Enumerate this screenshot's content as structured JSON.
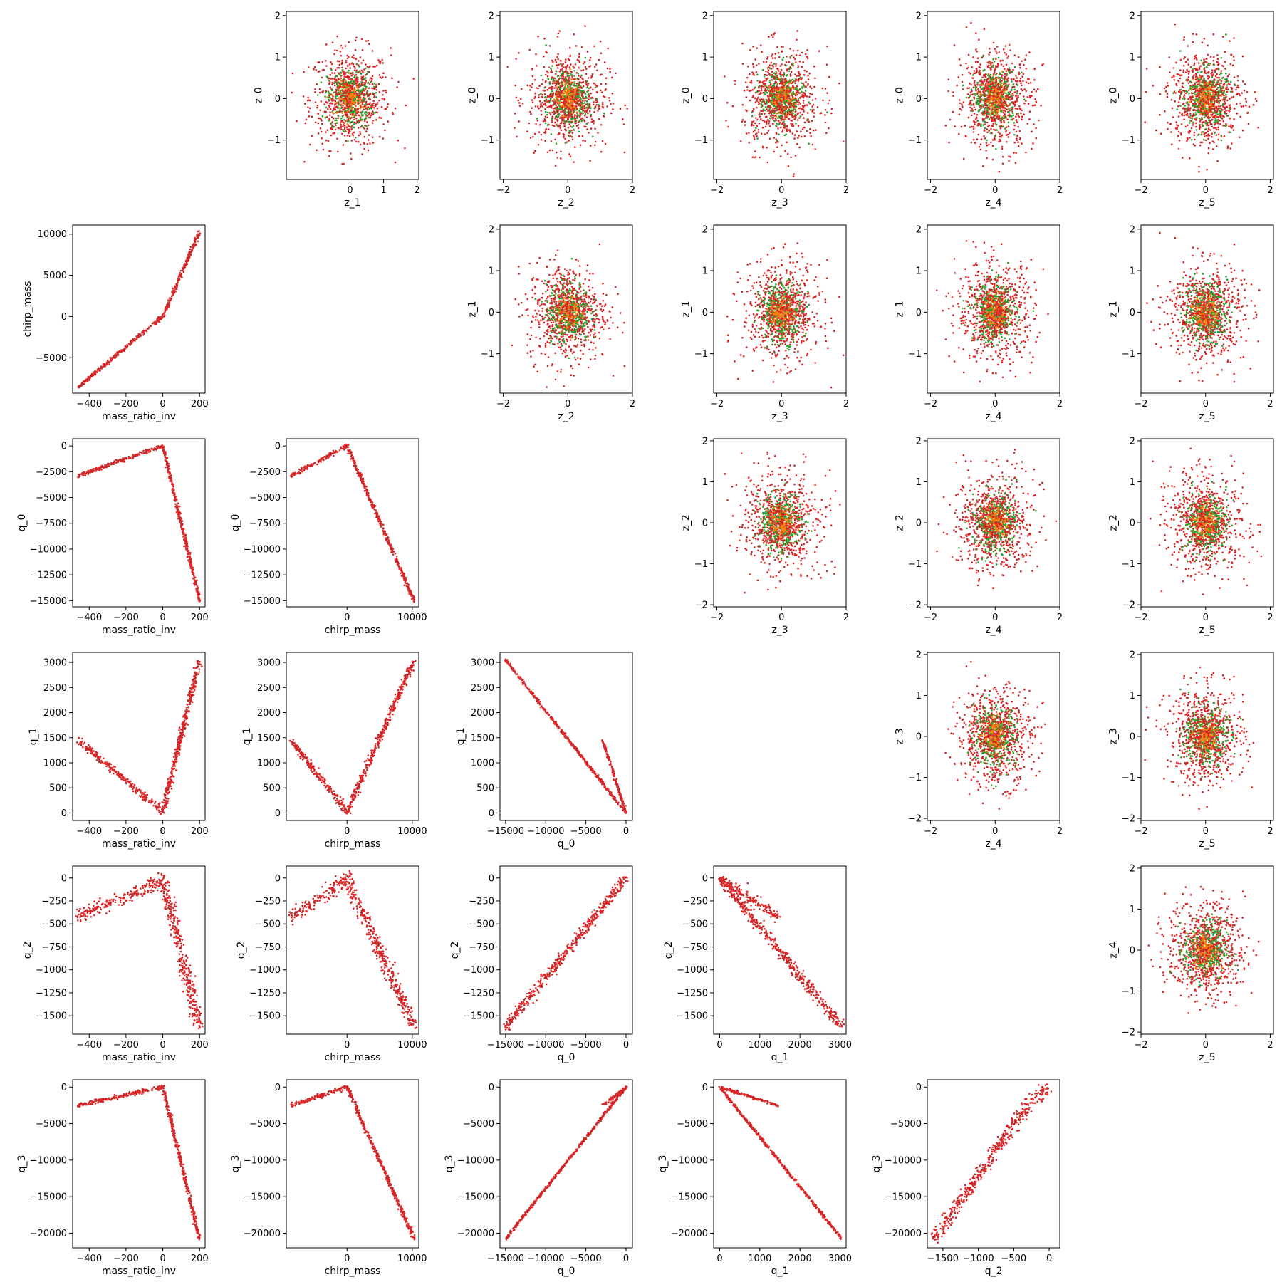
{
  "colors": {
    "red": "#d62728",
    "green": "#2ca02c",
    "orange": "#ff7f0e"
  },
  "chart_data": [
    {
      "type": "scatter",
      "row": 0,
      "col": 1,
      "xlabel": "z_1",
      "ylabel": "z_0",
      "xlim": [
        -1.9,
        2.05
      ],
      "ylim": [
        -1.95,
        2.1
      ],
      "xticks": [
        0,
        1,
        2
      ],
      "yticks": [
        -1,
        0,
        1,
        2
      ],
      "pattern": "cloud",
      "sx": 0.6,
      "sy": 0.6
    },
    {
      "type": "scatter",
      "row": 0,
      "col": 2,
      "xlabel": "z_2",
      "ylabel": "z_0",
      "xlim": [
        -2.1,
        2.0
      ],
      "ylim": [
        -1.95,
        2.1
      ],
      "xticks": [
        -2,
        0,
        2
      ],
      "yticks": [
        -1,
        0,
        1,
        2
      ],
      "pattern": "cloud",
      "sx": 0.62,
      "sy": 0.6
    },
    {
      "type": "scatter",
      "row": 0,
      "col": 3,
      "xlabel": "z_3",
      "ylabel": "z_0",
      "xlim": [
        -2.1,
        2.0
      ],
      "ylim": [
        -1.95,
        2.1
      ],
      "xticks": [
        -2,
        0,
        2
      ],
      "yticks": [
        -1,
        0,
        1,
        2
      ],
      "pattern": "cloud",
      "sx": 0.6,
      "sy": 0.6
    },
    {
      "type": "scatter",
      "row": 0,
      "col": 4,
      "xlabel": "z_4",
      "ylabel": "z_0",
      "xlim": [
        -2.1,
        2.0
      ],
      "ylim": [
        -1.95,
        2.1
      ],
      "xticks": [
        -2,
        0,
        2
      ],
      "yticks": [
        -1,
        0,
        1,
        2
      ],
      "pattern": "cloud",
      "sx": 0.6,
      "sy": 0.6
    },
    {
      "type": "scatter",
      "row": 0,
      "col": 5,
      "xlabel": "z_5",
      "ylabel": "z_0",
      "xlim": [
        -2.0,
        2.1
      ],
      "ylim": [
        -1.95,
        2.1
      ],
      "xticks": [
        -2,
        0,
        2
      ],
      "yticks": [
        -1,
        0,
        1,
        2
      ],
      "pattern": "cloud",
      "sx": 0.6,
      "sy": 0.6
    },
    {
      "type": "scatter",
      "row": 1,
      "col": 0,
      "xlabel": "mass_ratio_inv",
      "ylabel": "chirp_mass",
      "xlim": [
        -490,
        230
      ],
      "ylim": [
        -9300,
        11100
      ],
      "xticks": [
        -400,
        -200,
        0,
        200
      ],
      "yticks": [
        -5000,
        0,
        5000,
        10000
      ],
      "pattern": "polyline",
      "segments": [
        [
          [
            -460,
            -8600
          ],
          [
            -20,
            -300
          ],
          [
            0,
            0
          ]
        ],
        [
          [
            0,
            0
          ],
          [
            200,
            10300
          ]
        ]
      ],
      "spread": 0.006
    },
    {
      "type": "scatter",
      "row": 1,
      "col": 2,
      "xlabel": "z_2",
      "ylabel": "z_1",
      "xlim": [
        -2.1,
        2.0
      ],
      "ylim": [
        -1.95,
        2.1
      ],
      "xticks": [
        -2,
        0,
        2
      ],
      "yticks": [
        -1,
        0,
        1,
        2
      ],
      "pattern": "cloud",
      "sx": 0.62,
      "sy": 0.6
    },
    {
      "type": "scatter",
      "row": 1,
      "col": 3,
      "xlabel": "z_3",
      "ylabel": "z_1",
      "xlim": [
        -2.1,
        2.0
      ],
      "ylim": [
        -1.95,
        2.1
      ],
      "xticks": [
        -2,
        0,
        2
      ],
      "yticks": [
        -1,
        0,
        1,
        2
      ],
      "pattern": "cloud",
      "sx": 0.6,
      "sy": 0.6
    },
    {
      "type": "scatter",
      "row": 1,
      "col": 4,
      "xlabel": "z_4",
      "ylabel": "z_1",
      "xlim": [
        -2.1,
        2.0
      ],
      "ylim": [
        -1.95,
        2.1
      ],
      "xticks": [
        -2,
        0,
        2
      ],
      "yticks": [
        -1,
        0,
        1,
        2
      ],
      "pattern": "cloud",
      "sx": 0.6,
      "sy": 0.6
    },
    {
      "type": "scatter",
      "row": 1,
      "col": 5,
      "xlabel": "z_5",
      "ylabel": "z_1",
      "xlim": [
        -2.0,
        2.1
      ],
      "ylim": [
        -1.95,
        2.1
      ],
      "xticks": [
        -2,
        0,
        2
      ],
      "yticks": [
        -1,
        0,
        1,
        2
      ],
      "pattern": "cloud",
      "sx": 0.6,
      "sy": 0.6
    },
    {
      "type": "scatter",
      "row": 2,
      "col": 0,
      "xlabel": "mass_ratio_inv",
      "ylabel": "q_0",
      "xlim": [
        -490,
        230
      ],
      "ylim": [
        -15600,
        700
      ],
      "xticks": [
        -400,
        -200,
        0,
        200
      ],
      "yticks": [
        -15000,
        -12500,
        -10000,
        -7500,
        -5000,
        -2500,
        0
      ],
      "pattern": "polyline",
      "segments": [
        [
          [
            -460,
            -2900
          ],
          [
            0,
            0
          ]
        ],
        [
          [
            0,
            0
          ],
          [
            200,
            -15000
          ]
        ]
      ],
      "spread": 0.006
    },
    {
      "type": "scatter",
      "row": 2,
      "col": 1,
      "xlabel": "chirp_mass",
      "ylabel": "q_0",
      "xlim": [
        -9300,
        11000
      ],
      "ylim": [
        -15600,
        700
      ],
      "xticks": [
        0,
        10000
      ],
      "yticks": [
        -15000,
        -12500,
        -10000,
        -7500,
        -5000,
        -2500,
        0
      ],
      "pattern": "polyline",
      "segments": [
        [
          [
            -8600,
            -2900
          ],
          [
            0,
            0
          ]
        ],
        [
          [
            0,
            0
          ],
          [
            10300,
            -15000
          ]
        ]
      ],
      "spread": 0.006
    },
    {
      "type": "scatter",
      "row": 2,
      "col": 3,
      "xlabel": "z_3",
      "ylabel": "z_2",
      "xlim": [
        -2.1,
        2.0
      ],
      "ylim": [
        -2.05,
        2.05
      ],
      "xticks": [
        -2,
        0,
        2
      ],
      "yticks": [
        -2,
        -1,
        0,
        1,
        2
      ],
      "pattern": "cloud",
      "sx": 0.6,
      "sy": 0.6
    },
    {
      "type": "scatter",
      "row": 2,
      "col": 4,
      "xlabel": "z_4",
      "ylabel": "z_2",
      "xlim": [
        -2.1,
        2.0
      ],
      "ylim": [
        -2.05,
        2.05
      ],
      "xticks": [
        -2,
        0,
        2
      ],
      "yticks": [
        -2,
        -1,
        0,
        1,
        2
      ],
      "pattern": "cloud",
      "sx": 0.6,
      "sy": 0.6
    },
    {
      "type": "scatter",
      "row": 2,
      "col": 5,
      "xlabel": "z_5",
      "ylabel": "z_2",
      "xlim": [
        -2.0,
        2.1
      ],
      "ylim": [
        -2.05,
        2.05
      ],
      "xticks": [
        -2,
        0,
        2
      ],
      "yticks": [
        -2,
        -1,
        0,
        1,
        2
      ],
      "pattern": "cloud",
      "sx": 0.6,
      "sy": 0.6
    },
    {
      "type": "scatter",
      "row": 3,
      "col": 0,
      "xlabel": "mass_ratio_inv",
      "ylabel": "q_1",
      "xlim": [
        -490,
        230
      ],
      "ylim": [
        -150,
        3200
      ],
      "xticks": [
        -400,
        -200,
        0,
        200
      ],
      "yticks": [
        0,
        500,
        1000,
        1500,
        2000,
        2500,
        3000
      ],
      "pattern": "polyline",
      "segments": [
        [
          [
            -460,
            1450
          ],
          [
            0,
            20
          ]
        ],
        [
          [
            0,
            20
          ],
          [
            200,
            3050
          ]
        ]
      ],
      "spread": 0.01
    },
    {
      "type": "scatter",
      "row": 3,
      "col": 1,
      "xlabel": "chirp_mass",
      "ylabel": "q_1",
      "xlim": [
        -9300,
        11000
      ],
      "ylim": [
        -150,
        3200
      ],
      "xticks": [
        0,
        10000
      ],
      "yticks": [
        0,
        500,
        1000,
        1500,
        2000,
        2500,
        3000
      ],
      "pattern": "polyline",
      "segments": [
        [
          [
            -8600,
            1450
          ],
          [
            0,
            20
          ]
        ],
        [
          [
            0,
            20
          ],
          [
            10300,
            3050
          ]
        ]
      ],
      "spread": 0.01
    },
    {
      "type": "scatter",
      "row": 3,
      "col": 2,
      "xlabel": "q_0",
      "ylabel": "q_1",
      "xlim": [
        -15700,
        800
      ],
      "ylim": [
        -150,
        3200
      ],
      "xticks": [
        -15000,
        -10000,
        -5000,
        0
      ],
      "yticks": [
        0,
        500,
        1000,
        1500,
        2000,
        2500,
        3000
      ],
      "pattern": "polyline",
      "segments": [
        [
          [
            -15000,
            3050
          ],
          [
            0,
            0
          ]
        ],
        [
          [
            -2900,
            1450
          ],
          [
            0,
            0
          ]
        ]
      ],
      "spread": 0.004
    },
    {
      "type": "scatter",
      "row": 3,
      "col": 4,
      "xlabel": "z_4",
      "ylabel": "z_3",
      "xlim": [
        -2.1,
        2.0
      ],
      "ylim": [
        -2.05,
        2.05
      ],
      "xticks": [
        -2,
        0,
        2
      ],
      "yticks": [
        -2,
        -1,
        0,
        1,
        2
      ],
      "pattern": "cloud",
      "sx": 0.6,
      "sy": 0.6
    },
    {
      "type": "scatter",
      "row": 3,
      "col": 5,
      "xlabel": "z_5",
      "ylabel": "z_3",
      "xlim": [
        -2.0,
        2.1
      ],
      "ylim": [
        -2.05,
        2.05
      ],
      "xticks": [
        -2,
        0,
        2
      ],
      "yticks": [
        -2,
        -1,
        0,
        1,
        2
      ],
      "pattern": "cloud",
      "sx": 0.6,
      "sy": 0.6
    },
    {
      "type": "scatter",
      "row": 4,
      "col": 0,
      "xlabel": "mass_ratio_inv",
      "ylabel": "q_2",
      "xlim": [
        -490,
        230
      ],
      "ylim": [
        -1700,
        130
      ],
      "xticks": [
        -400,
        -200,
        0,
        200
      ],
      "yticks": [
        -1500,
        -1250,
        -1000,
        -750,
        -500,
        -250,
        0
      ],
      "pattern": "polyline",
      "segments": [
        [
          [
            -460,
            -420
          ],
          [
            -100,
            -130
          ],
          [
            0,
            0
          ]
        ],
        [
          [
            0,
            0
          ],
          [
            200,
            -1620
          ]
        ]
      ],
      "spread": 0.02
    },
    {
      "type": "scatter",
      "row": 4,
      "col": 1,
      "xlabel": "chirp_mass",
      "ylabel": "q_2",
      "xlim": [
        -9300,
        11000
      ],
      "ylim": [
        -1700,
        130
      ],
      "xticks": [
        0,
        10000
      ],
      "yticks": [
        -1500,
        -1250,
        -1000,
        -750,
        -500,
        -250,
        0
      ],
      "pattern": "polyline",
      "segments": [
        [
          [
            -8600,
            -420
          ],
          [
            -2000,
            -130
          ],
          [
            0,
            0
          ]
        ],
        [
          [
            0,
            0
          ],
          [
            10300,
            -1620
          ]
        ]
      ],
      "spread": 0.02
    },
    {
      "type": "scatter",
      "row": 4,
      "col": 2,
      "xlabel": "q_0",
      "ylabel": "q_2",
      "xlim": [
        -15700,
        800
      ],
      "ylim": [
        -1700,
        130
      ],
      "xticks": [
        -15000,
        -10000,
        -5000,
        0
      ],
      "yticks": [
        -1500,
        -1250,
        -1000,
        -750,
        -500,
        -250,
        0
      ],
      "pattern": "polyline",
      "segments": [
        [
          [
            -15000,
            -1620
          ],
          [
            0,
            0
          ]
        ]
      ],
      "spread": 0.015
    },
    {
      "type": "scatter",
      "row": 4,
      "col": 3,
      "xlabel": "q_1",
      "ylabel": "q_2",
      "xlim": [
        -150,
        3150
      ],
      "ylim": [
        -1700,
        130
      ],
      "xticks": [
        0,
        1000,
        2000,
        3000
      ],
      "yticks": [
        -1500,
        -1250,
        -1000,
        -750,
        -500,
        -250,
        0
      ],
      "pattern": "polyline",
      "segments": [
        [
          [
            0,
            0
          ],
          [
            3050,
            -1620
          ]
        ],
        [
          [
            0,
            0
          ],
          [
            1450,
            -420
          ]
        ]
      ],
      "spread": 0.015
    },
    {
      "type": "scatter",
      "row": 4,
      "col": 5,
      "xlabel": "z_5",
      "ylabel": "z_4",
      "xlim": [
        -2.0,
        2.1
      ],
      "ylim": [
        -2.05,
        2.05
      ],
      "xticks": [
        -2,
        0,
        2
      ],
      "yticks": [
        -2,
        -1,
        0,
        1,
        2
      ],
      "pattern": "cloud",
      "sx": 0.6,
      "sy": 0.6
    },
    {
      "type": "scatter",
      "row": 5,
      "col": 0,
      "xlabel": "mass_ratio_inv",
      "ylabel": "q_3",
      "xlim": [
        -490,
        230
      ],
      "ylim": [
        -22000,
        1000
      ],
      "xticks": [
        -400,
        -200,
        0,
        200
      ],
      "yticks": [
        -20000,
        -15000,
        -10000,
        -5000,
        0
      ],
      "pattern": "polyline",
      "segments": [
        [
          [
            -460,
            -2500
          ],
          [
            0,
            0
          ]
        ],
        [
          [
            0,
            0
          ],
          [
            200,
            -20800
          ]
        ]
      ],
      "spread": 0.006
    },
    {
      "type": "scatter",
      "row": 5,
      "col": 1,
      "xlabel": "chirp_mass",
      "ylabel": "q_3",
      "xlim": [
        -9300,
        11000
      ],
      "ylim": [
        -22000,
        1000
      ],
      "xticks": [
        0,
        10000
      ],
      "yticks": [
        -20000,
        -15000,
        -10000,
        -5000,
        0
      ],
      "pattern": "polyline",
      "segments": [
        [
          [
            -8600,
            -2500
          ],
          [
            0,
            0
          ]
        ],
        [
          [
            0,
            0
          ],
          [
            10300,
            -20800
          ]
        ]
      ],
      "spread": 0.006
    },
    {
      "type": "scatter",
      "row": 5,
      "col": 2,
      "xlabel": "q_0",
      "ylabel": "q_3",
      "xlim": [
        -15700,
        800
      ],
      "ylim": [
        -22000,
        1000
      ],
      "xticks": [
        -15000,
        -10000,
        -5000,
        0
      ],
      "yticks": [
        -20000,
        -15000,
        -10000,
        -5000,
        0
      ],
      "pattern": "polyline",
      "segments": [
        [
          [
            -15000,
            -20800
          ],
          [
            0,
            0
          ]
        ],
        [
          [
            -2900,
            -2500
          ],
          [
            0,
            0
          ]
        ]
      ],
      "spread": 0.004
    },
    {
      "type": "scatter",
      "row": 5,
      "col": 3,
      "xlabel": "q_1",
      "ylabel": "q_3",
      "xlim": [
        -150,
        3150
      ],
      "ylim": [
        -22000,
        1000
      ],
      "xticks": [
        0,
        1000,
        2000,
        3000
      ],
      "yticks": [
        -20000,
        -15000,
        -10000,
        -5000,
        0
      ],
      "pattern": "polyline",
      "segments": [
        [
          [
            0,
            0
          ],
          [
            3050,
            -20800
          ]
        ],
        [
          [
            0,
            0
          ],
          [
            1450,
            -2500
          ]
        ]
      ],
      "spread": 0.004
    },
    {
      "type": "scatter",
      "row": 5,
      "col": 4,
      "xlabel": "q_2",
      "ylabel": "q_3",
      "xlim": [
        -1720,
        150
      ],
      "ylim": [
        -22000,
        1000
      ],
      "xticks": [
        -1500,
        -1000,
        -500,
        0
      ],
      "yticks": [
        -20000,
        -15000,
        -10000,
        -5000,
        0
      ],
      "pattern": "polyline",
      "segments": [
        [
          [
            -1620,
            -20800
          ],
          [
            -500,
            -5000
          ],
          [
            -200,
            -1500
          ],
          [
            0,
            0
          ]
        ]
      ],
      "spread": 0.02
    }
  ]
}
